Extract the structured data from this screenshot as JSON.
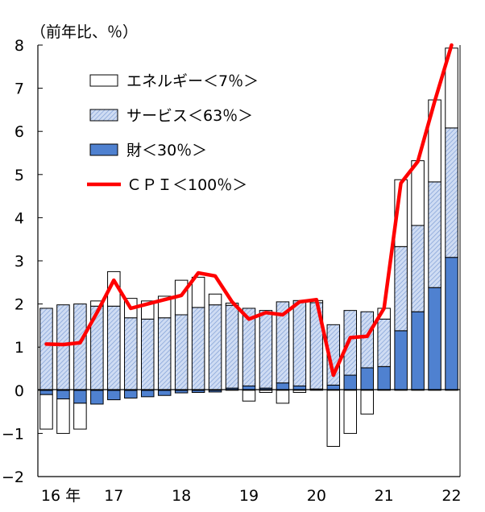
{
  "chart_data": {
    "type": "bar",
    "unit_label": "（前年比、％）",
    "ylim": [
      -2,
      8
    ],
    "yticks": [
      8,
      7,
      6,
      5,
      4,
      3,
      2,
      1,
      0,
      -1,
      -2
    ],
    "ytick_labels": [
      "8",
      "7",
      "6",
      "5",
      "4",
      "3",
      "2",
      "1",
      "0",
      "−1",
      "−2"
    ],
    "xticks": [
      {
        "label": "16 年",
        "index": 0
      },
      {
        "label": "17",
        "index": 4
      },
      {
        "label": "18",
        "index": 8
      },
      {
        "label": "19",
        "index": 12
      },
      {
        "label": "20",
        "index": 16
      },
      {
        "label": "21",
        "index": 20
      },
      {
        "label": "22",
        "index": 24
      }
    ],
    "periods": 25,
    "legend_position": "top-left",
    "colors": {
      "energy": "#ffffff",
      "services": "#cfdcf3",
      "services_hatch": "#7f9fd6",
      "goods": "#4f81d0",
      "cpi": "#ff0000",
      "outline": "#000000"
    },
    "series": [
      {
        "name": "エネルギー＜7％＞",
        "key": "energy",
        "values": [
          -0.8,
          -0.8,
          -0.6,
          0.12,
          0.8,
          0.45,
          0.42,
          0.5,
          0.8,
          0.7,
          0.25,
          0.05,
          -0.25,
          -0.05,
          -0.3,
          -0.05,
          0.05,
          -1.3,
          -1.0,
          -0.55,
          0.25,
          1.55,
          1.5,
          1.9,
          1.85
        ]
      },
      {
        "name": "サービス＜63％＞",
        "key": "services",
        "values": [
          1.9,
          1.98,
          2.0,
          1.95,
          1.95,
          1.68,
          1.65,
          1.68,
          1.75,
          1.92,
          1.98,
          1.92,
          1.8,
          1.8,
          1.88,
          1.98,
          2.0,
          1.4,
          1.5,
          1.3,
          1.1,
          1.95,
          2.0,
          2.45,
          3.0
        ]
      },
      {
        "name": "財＜30％＞",
        "key": "goods",
        "values": [
          -0.1,
          -0.2,
          -0.3,
          -0.32,
          -0.22,
          -0.18,
          -0.15,
          -0.12,
          -0.06,
          -0.05,
          -0.04,
          0.05,
          0.1,
          0.05,
          0.17,
          0.1,
          0.03,
          0.12,
          0.35,
          0.52,
          0.55,
          1.38,
          1.82,
          2.38,
          3.08
        ]
      },
      {
        "name": "ＣＰＩ＜100％＞",
        "key": "cpi",
        "values": [
          1.07,
          1.06,
          1.1,
          1.8,
          2.55,
          1.9,
          2.0,
          2.1,
          2.2,
          2.72,
          2.65,
          2.05,
          1.65,
          1.8,
          1.75,
          2.05,
          2.1,
          0.35,
          1.22,
          1.25,
          1.9,
          4.8,
          5.3,
          6.7,
          8.0
        ]
      }
    ]
  }
}
